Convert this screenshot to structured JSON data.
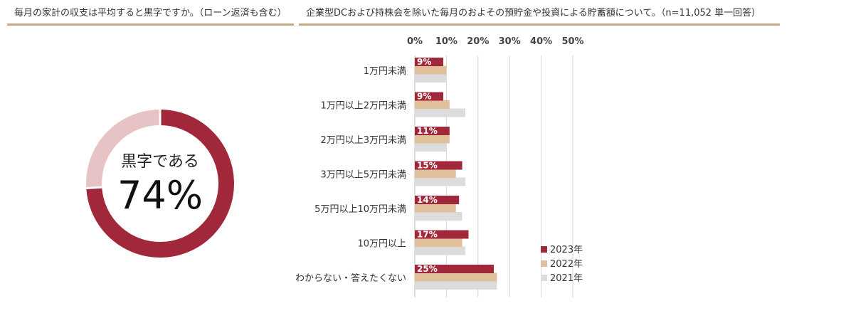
{
  "left_panel": {
    "title": "毎月の家計の収支は平均すると黒字ですか。（ローン返済も含む）"
  },
  "right_panel": {
    "title": "企業型DCおよび持株会を除いた毎月のおよその預貯金や投資による貯蓄額について。（n=11,052 単一回答）"
  },
  "colors": {
    "s2023": "#a0283a",
    "s2022": "#dfc09a",
    "s2021": "#dcdcdc",
    "donut_rest": "#e8c3c6",
    "underline": "#c7ab86"
  },
  "chart_data": [
    {
      "type": "pie",
      "donut": true,
      "center_label": "黒字である",
      "center_value": "74%",
      "values": [
        74,
        26
      ]
    },
    {
      "type": "bar",
      "orientation": "horizontal",
      "xlim": [
        0,
        50
      ],
      "ticks": [
        "0%",
        "10%",
        "20%",
        "30%",
        "40%",
        "50%"
      ],
      "grid": true,
      "legend_position": "bottom-right",
      "categories": [
        "1万円未満",
        "1万円以上2万円未満",
        "2万円以上3万円未満",
        "3万円以上5万円未満",
        "5万円以上10万円未満",
        "10万円以上",
        "わからない・答えたくない"
      ],
      "series": [
        {
          "name": "2023年",
          "values": [
            9,
            9,
            11,
            15,
            14,
            17,
            25
          ]
        },
        {
          "name": "2022年",
          "values": [
            10,
            11,
            11,
            13,
            13,
            15,
            26
          ]
        },
        {
          "name": "2021年",
          "values": [
            10,
            16,
            10,
            16,
            15,
            16,
            26
          ]
        }
      ],
      "data_labels": [
        "9%",
        "9%",
        "11%",
        "15%",
        "14%",
        "17%",
        "25%"
      ]
    }
  ]
}
